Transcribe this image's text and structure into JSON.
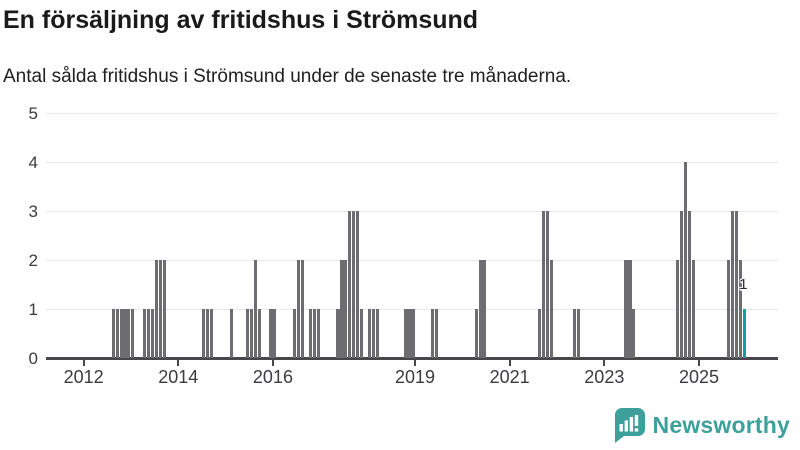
{
  "header": {
    "title": "En försäljning av fritidshus i Strömsund",
    "subtitle": "Antal sålda fritidshus i Strömsund under de senaste tre månaderna."
  },
  "footer": {
    "brand": "Newsworthy"
  },
  "chart_data": {
    "type": "bar",
    "title": "En försäljning av fritidshus i Strömsund",
    "subtitle": "Antal sålda fritidshus i Strömsund under de senaste tre månaderna.",
    "xlabel": "",
    "ylabel": "",
    "x_tick_years": [
      2012,
      2014,
      2016,
      2019,
      2021,
      2023,
      2025
    ],
    "y_ticks": [
      0,
      1,
      2,
      3,
      4,
      5
    ],
    "ylim": [
      0,
      5
    ],
    "grid": true,
    "x_domain": [
      "2011-04",
      "2026-09"
    ],
    "points": [
      [
        "2012-08",
        1
      ],
      [
        "2012-09",
        1
      ],
      [
        "2012-10",
        1
      ],
      [
        "2012-11",
        1
      ],
      [
        "2012-12",
        1
      ],
      [
        "2013-01",
        1
      ],
      [
        "2013-04",
        1
      ],
      [
        "2013-05",
        1
      ],
      [
        "2013-06",
        1
      ],
      [
        "2013-07",
        2
      ],
      [
        "2013-08",
        2
      ],
      [
        "2013-09",
        2
      ],
      [
        "2014-07",
        1
      ],
      [
        "2014-08",
        1
      ],
      [
        "2014-09",
        1
      ],
      [
        "2015-02",
        1
      ],
      [
        "2015-06",
        1
      ],
      [
        "2015-07",
        1
      ],
      [
        "2015-08",
        2
      ],
      [
        "2015-09",
        1
      ],
      [
        "2015-12",
        1
      ],
      [
        "2016-01",
        1
      ],
      [
        "2016-06",
        1
      ],
      [
        "2016-07",
        2
      ],
      [
        "2016-08",
        2
      ],
      [
        "2016-10",
        1
      ],
      [
        "2016-11",
        1
      ],
      [
        "2016-12",
        1
      ],
      [
        "2017-05",
        1
      ],
      [
        "2017-06",
        2
      ],
      [
        "2017-07",
        2
      ],
      [
        "2017-08",
        3
      ],
      [
        "2017-09",
        3
      ],
      [
        "2017-10",
        3
      ],
      [
        "2017-11",
        1
      ],
      [
        "2018-01",
        1
      ],
      [
        "2018-02",
        1
      ],
      [
        "2018-03",
        1
      ],
      [
        "2018-10",
        1
      ],
      [
        "2018-11",
        1
      ],
      [
        "2018-12",
        1
      ],
      [
        "2019-05",
        1
      ],
      [
        "2019-06",
        1
      ],
      [
        "2020-04",
        1
      ],
      [
        "2020-05",
        2
      ],
      [
        "2020-06",
        2
      ],
      [
        "2021-08",
        1
      ],
      [
        "2021-09",
        3
      ],
      [
        "2021-10",
        3
      ],
      [
        "2021-11",
        2
      ],
      [
        "2022-05",
        1
      ],
      [
        "2022-06",
        1
      ],
      [
        "2023-06",
        2
      ],
      [
        "2023-07",
        2
      ],
      [
        "2023-08",
        1
      ],
      [
        "2024-07",
        2
      ],
      [
        "2024-08",
        3
      ],
      [
        "2024-09",
        4
      ],
      [
        "2024-10",
        3
      ],
      [
        "2024-11",
        2
      ],
      [
        "2025-08",
        2
      ],
      [
        "2025-09",
        3
      ],
      [
        "2025-10",
        3
      ],
      [
        "2025-11",
        2
      ],
      [
        "2025-12",
        1
      ]
    ],
    "highlight": {
      "month": "2025-12",
      "value": 1,
      "label": "1"
    },
    "colors": {
      "bar": "#6c6c71",
      "highlight": "#12a29c",
      "grid": "#e9e9e9",
      "axis": "#47474c"
    }
  }
}
